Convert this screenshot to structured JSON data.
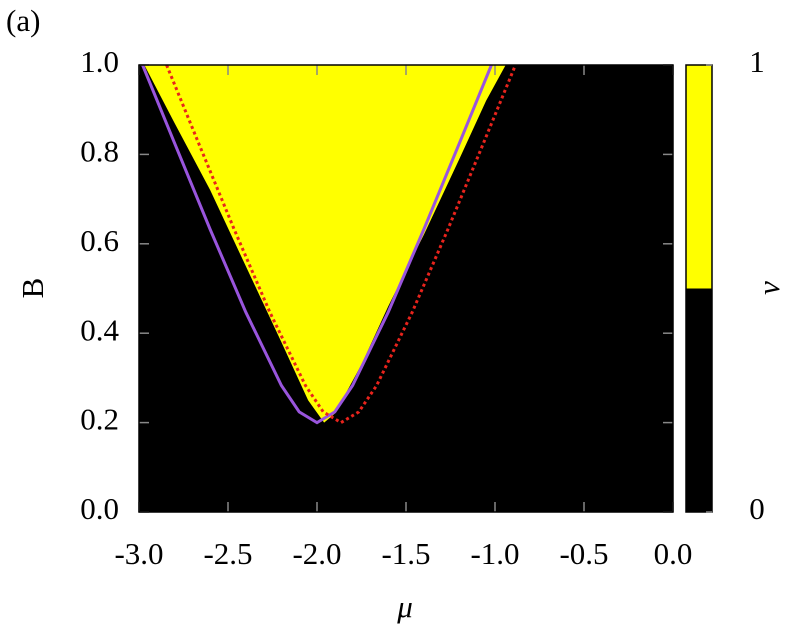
{
  "chart_data": {
    "type": "region",
    "panel_label": "(a)",
    "xlabel": "μ",
    "ylabel": "B",
    "xlim": [
      -3,
      0
    ],
    "ylim": [
      0,
      1
    ],
    "xticks": [
      {
        "value": -3,
        "label": "-3.0"
      },
      {
        "value": -2.5,
        "label": "-2.5"
      },
      {
        "value": -2,
        "label": "-2.0"
      },
      {
        "value": -1.5,
        "label": "-1.5"
      },
      {
        "value": -1,
        "label": "-1.0"
      },
      {
        "value": -0.5,
        "label": "-0.5"
      },
      {
        "value": 0,
        "label": "0.0"
      }
    ],
    "yticks": [
      {
        "value": 0,
        "label": "0.0"
      },
      {
        "value": 0.2,
        "label": "0.2"
      },
      {
        "value": 0.4,
        "label": "0.4"
      },
      {
        "value": 0.6,
        "label": "0.6"
      },
      {
        "value": 0.8,
        "label": "0.8"
      },
      {
        "value": 1,
        "label": "1.0"
      }
    ],
    "background": "#000000",
    "regions": [
      {
        "color": "#ffff00",
        "x": [
          -2.97,
          -2.8,
          -2.6,
          -2.4,
          -2.2,
          -2.05,
          -1.96,
          -1.9,
          -1.75,
          -1.6,
          -1.4,
          -1.2,
          -1.05,
          -0.94
        ],
        "y": [
          1,
          0.87,
          0.72,
          0.55,
          0.38,
          0.25,
          0.2,
          0.22,
          0.33,
          0.46,
          0.62,
          0.79,
          0.92,
          1
        ]
      }
    ],
    "curves": [
      {
        "color": "#9955dd",
        "dash": false,
        "x": [
          -2.98,
          -2.8,
          -2.6,
          -2.4,
          -2.2,
          -2.1,
          -2,
          -1.9,
          -1.8,
          -1.6,
          -1.4,
          -1.2,
          -1.02
        ],
        "y": [
          1,
          0.825,
          0.632,
          0.447,
          0.283,
          0.224,
          0.2,
          0.224,
          0.283,
          0.447,
          0.632,
          0.825,
          1
        ]
      },
      {
        "color": "#e8231c",
        "dash": true,
        "x": [
          -2.845,
          -2.665,
          -2.465,
          -2.265,
          -2.065,
          -1.965,
          -1.865,
          -1.765,
          -1.665,
          -1.465,
          -1.265,
          -1.065,
          -0.885
        ],
        "y": [
          1,
          0.825,
          0.632,
          0.447,
          0.283,
          0.224,
          0.2,
          0.224,
          0.283,
          0.447,
          0.632,
          0.825,
          1
        ]
      }
    ],
    "colorbar": {
      "label": "ν",
      "lim": [
        0,
        1
      ],
      "ticks": [
        0,
        1
      ],
      "colors": [
        "#000000",
        "#ffff00"
      ]
    }
  }
}
